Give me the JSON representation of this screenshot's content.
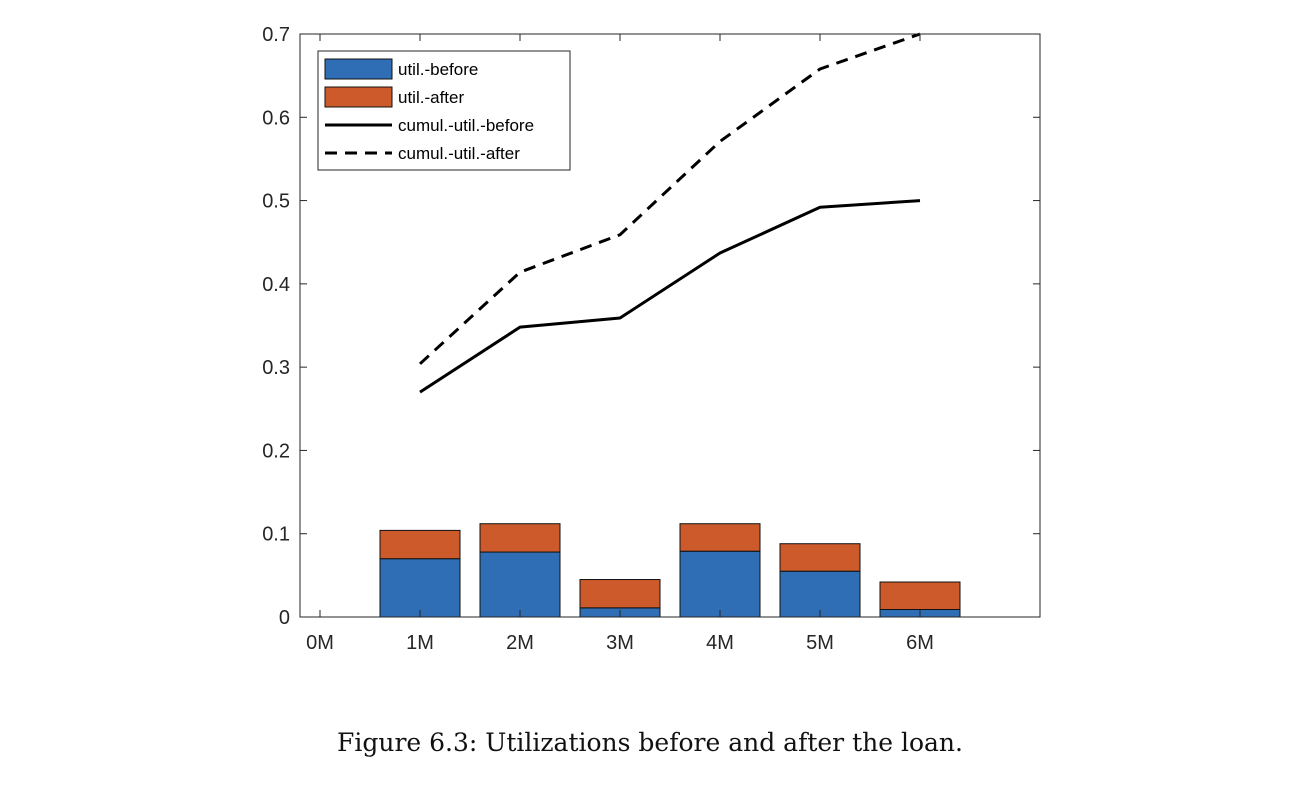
{
  "caption": "Figure 6.3: Utilizations before and after the loan.",
  "chart_data": {
    "type": "bar",
    "title": "",
    "xlabel": "",
    "ylabel": "",
    "categories": [
      "0M",
      "1M",
      "2M",
      "3M",
      "4M",
      "5M",
      "6M"
    ],
    "xlim": [
      0,
      7
    ],
    "ylim": [
      0,
      0.7
    ],
    "yticks": [
      0,
      0.1,
      0.2,
      0.3,
      0.4,
      0.5,
      0.6,
      0.7
    ],
    "ytick_labels": [
      "0",
      "0.1",
      "0.2",
      "0.3",
      "0.4",
      "0.5",
      "0.6",
      "0.7"
    ],
    "legend_position": "top-left",
    "grid": false,
    "series": [
      {
        "name": "util.-before",
        "kind": "stacked-bar",
        "color": "#2f6eb5",
        "values": [
          null,
          0.07,
          0.078,
          0.011,
          0.079,
          0.055,
          0.009
        ]
      },
      {
        "name": "util.-after",
        "kind": "stacked-bar",
        "color": "#cc5a2a",
        "values": [
          null,
          0.034,
          0.034,
          0.034,
          0.033,
          0.033,
          0.033
        ]
      },
      {
        "name": "cumul.-util.-before",
        "kind": "line",
        "style": "solid",
        "color": "#000000",
        "values": [
          null,
          0.27,
          0.348,
          0.359,
          0.437,
          0.492,
          0.5
        ]
      },
      {
        "name": "cumul.-util.-after",
        "kind": "line",
        "style": "dashed",
        "color": "#000000",
        "values": [
          null,
          0.304,
          0.414,
          0.459,
          0.571,
          0.658,
          0.7
        ]
      }
    ]
  }
}
